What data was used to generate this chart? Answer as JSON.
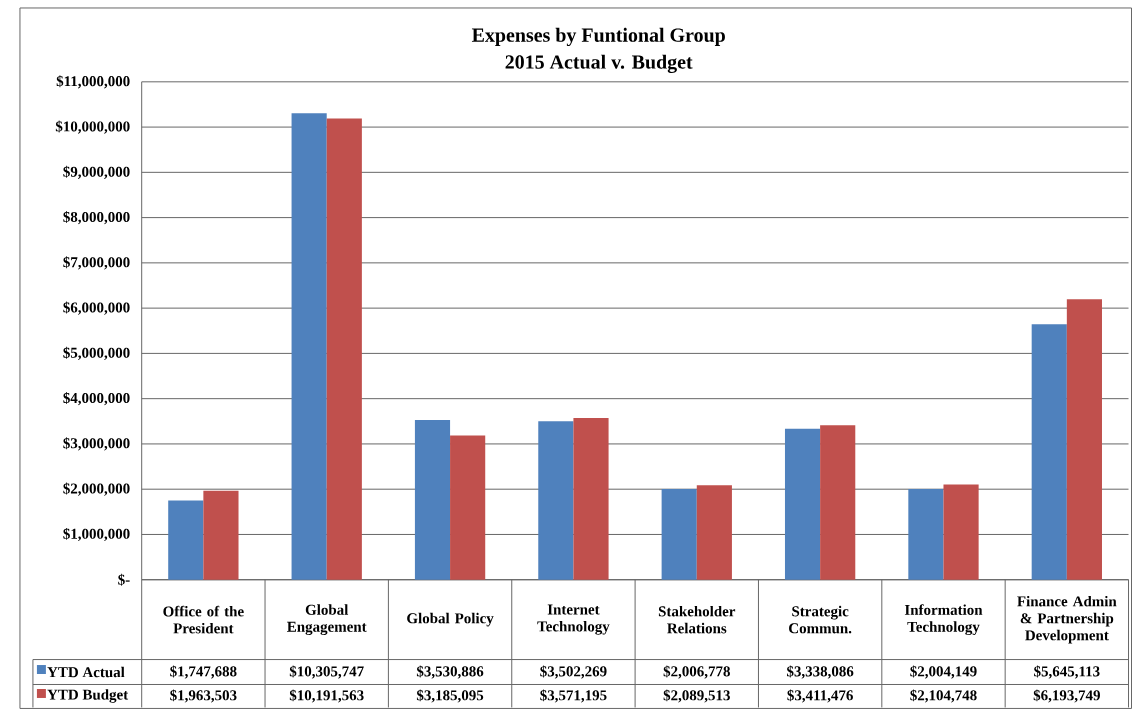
{
  "chart_data": {
    "type": "bar",
    "title": "Expenses  by Funtional Group",
    "subtitle": "2015 Actual v. Budget",
    "categories": [
      "Office of the President",
      "Global Engagement",
      "Global Policy",
      "Internet Technology",
      "Stakeholder Relations",
      "Strategic Commun.",
      "Information Technology",
      "Finance Admin & Partnership Development"
    ],
    "series": [
      {
        "name": "YTD Actual",
        "color": "#4f81bd",
        "values": [
          1747688,
          10305747,
          3530886,
          3502269,
          2006778,
          3338086,
          2004149,
          5645113
        ],
        "value_labels": [
          "$1,747,688",
          "$10,305,747",
          "$3,530,886",
          "$3,502,269",
          "$2,006,778",
          "$3,338,086",
          "$2,004,149",
          "$5,645,113"
        ]
      },
      {
        "name": "YTD Budget",
        "color": "#c0504d",
        "values": [
          1963503,
          10191563,
          3185095,
          3571195,
          2089513,
          3411476,
          2104748,
          6193749
        ],
        "value_labels": [
          "$1,963,503",
          "$10,191,563",
          "$3,185,095",
          "$3,571,195",
          "$2,089,513",
          "$3,411,476",
          "$2,104,748",
          "$6,193,749"
        ]
      }
    ],
    "ylim": [
      0,
      11000000
    ],
    "yticks": [
      {
        "value": 0,
        "label": "$-"
      },
      {
        "value": 1000000,
        "label": "$1,000,000"
      },
      {
        "value": 2000000,
        "label": "$2,000,000"
      },
      {
        "value": 3000000,
        "label": "$3,000,000"
      },
      {
        "value": 4000000,
        "label": "$4,000,000"
      },
      {
        "value": 5000000,
        "label": "$5,000,000"
      },
      {
        "value": 6000000,
        "label": "$6,000,000"
      },
      {
        "value": 7000000,
        "label": "$7,000,000"
      },
      {
        "value": 8000000,
        "label": "$8,000,000"
      },
      {
        "value": 9000000,
        "label": "$9,000,000"
      },
      {
        "value": 10000000,
        "label": "$10,000,000"
      },
      {
        "value": 11000000,
        "label": "$11,000,000"
      }
    ],
    "grid": "y",
    "legend": "bottom"
  }
}
